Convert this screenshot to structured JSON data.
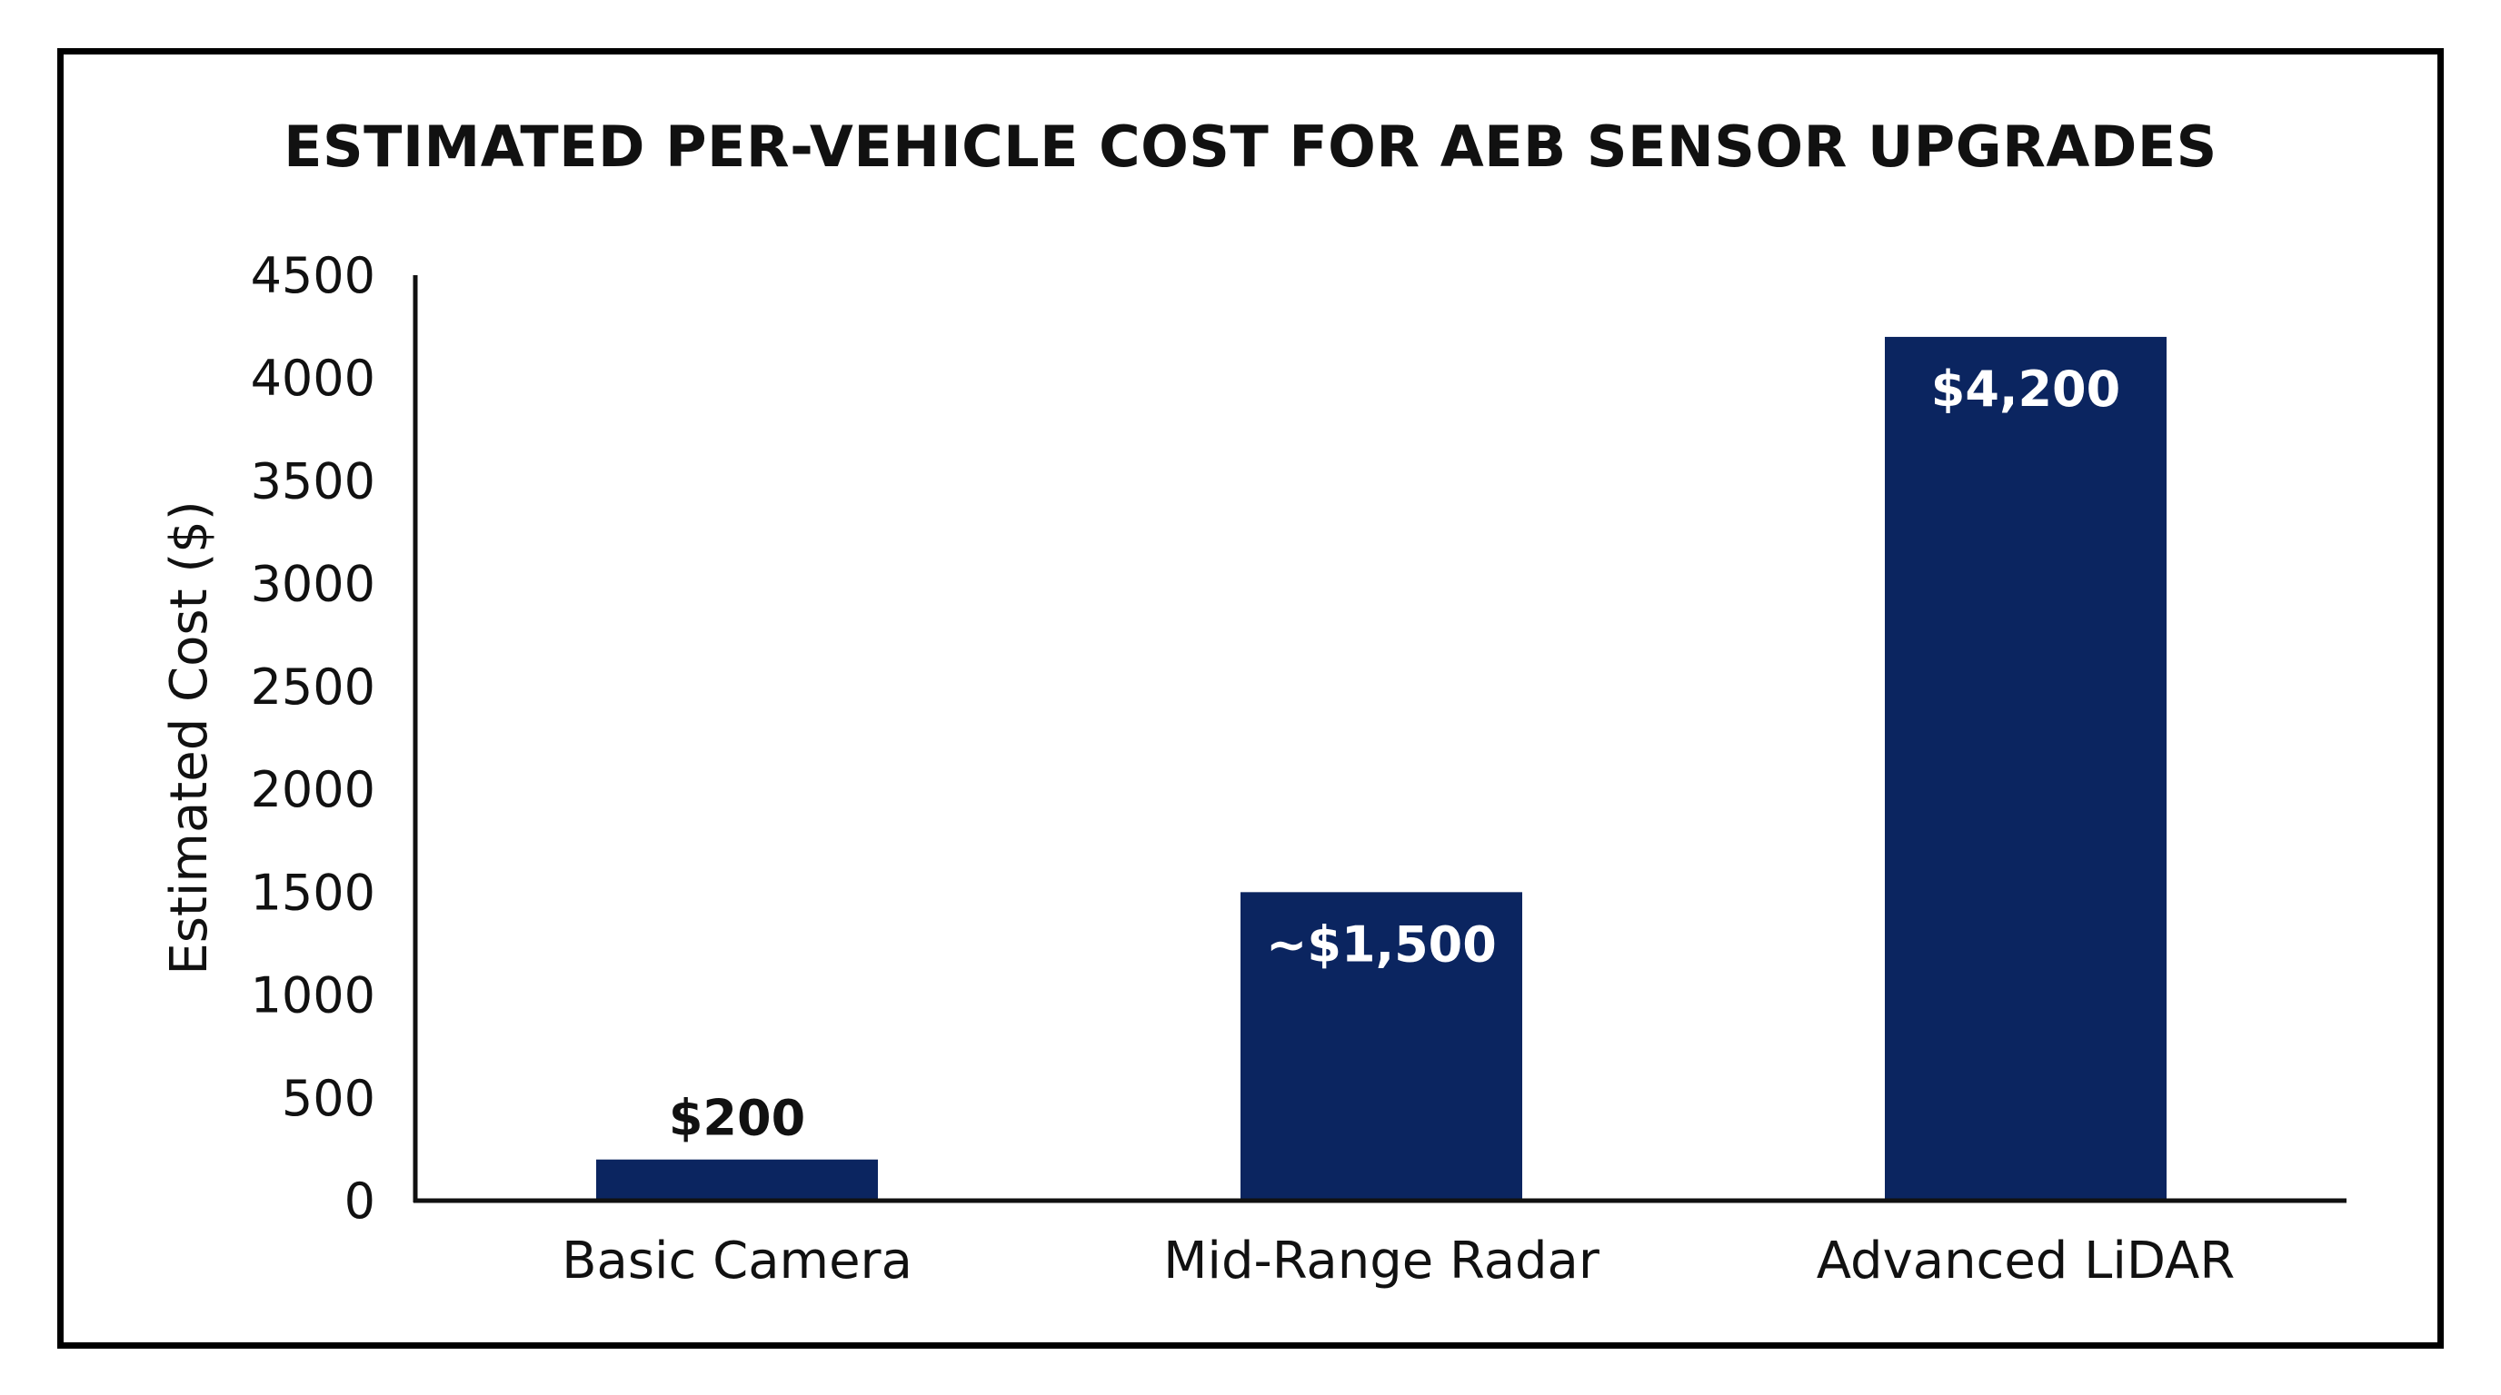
{
  "chart_data": {
    "type": "bar",
    "title": "ESTIMATED PER-VEHICLE COST FOR AEB SENSOR UPGRADES",
    "xlabel": "",
    "ylabel": "Estimated Cost ($)",
    "categories": [
      "Basic Camera",
      "Mid-Range Radar",
      "Advanced LiDAR"
    ],
    "values": [
      200,
      1500,
      4200
    ],
    "data_labels": [
      "$200",
      "~$1,500",
      "$4,200"
    ],
    "data_label_positions": [
      "above",
      "inside",
      "inside"
    ],
    "ylim": [
      0,
      4500
    ],
    "yticks": [
      0,
      500,
      1000,
      1500,
      2000,
      2500,
      3000,
      3500,
      4000,
      4500
    ],
    "grid": false,
    "legend": "none",
    "colors": {
      "bar": "#0b2560",
      "label_inside": "#ffffff",
      "label_outside": "#111111",
      "axis": "#111111",
      "frame": "#000000"
    }
  }
}
